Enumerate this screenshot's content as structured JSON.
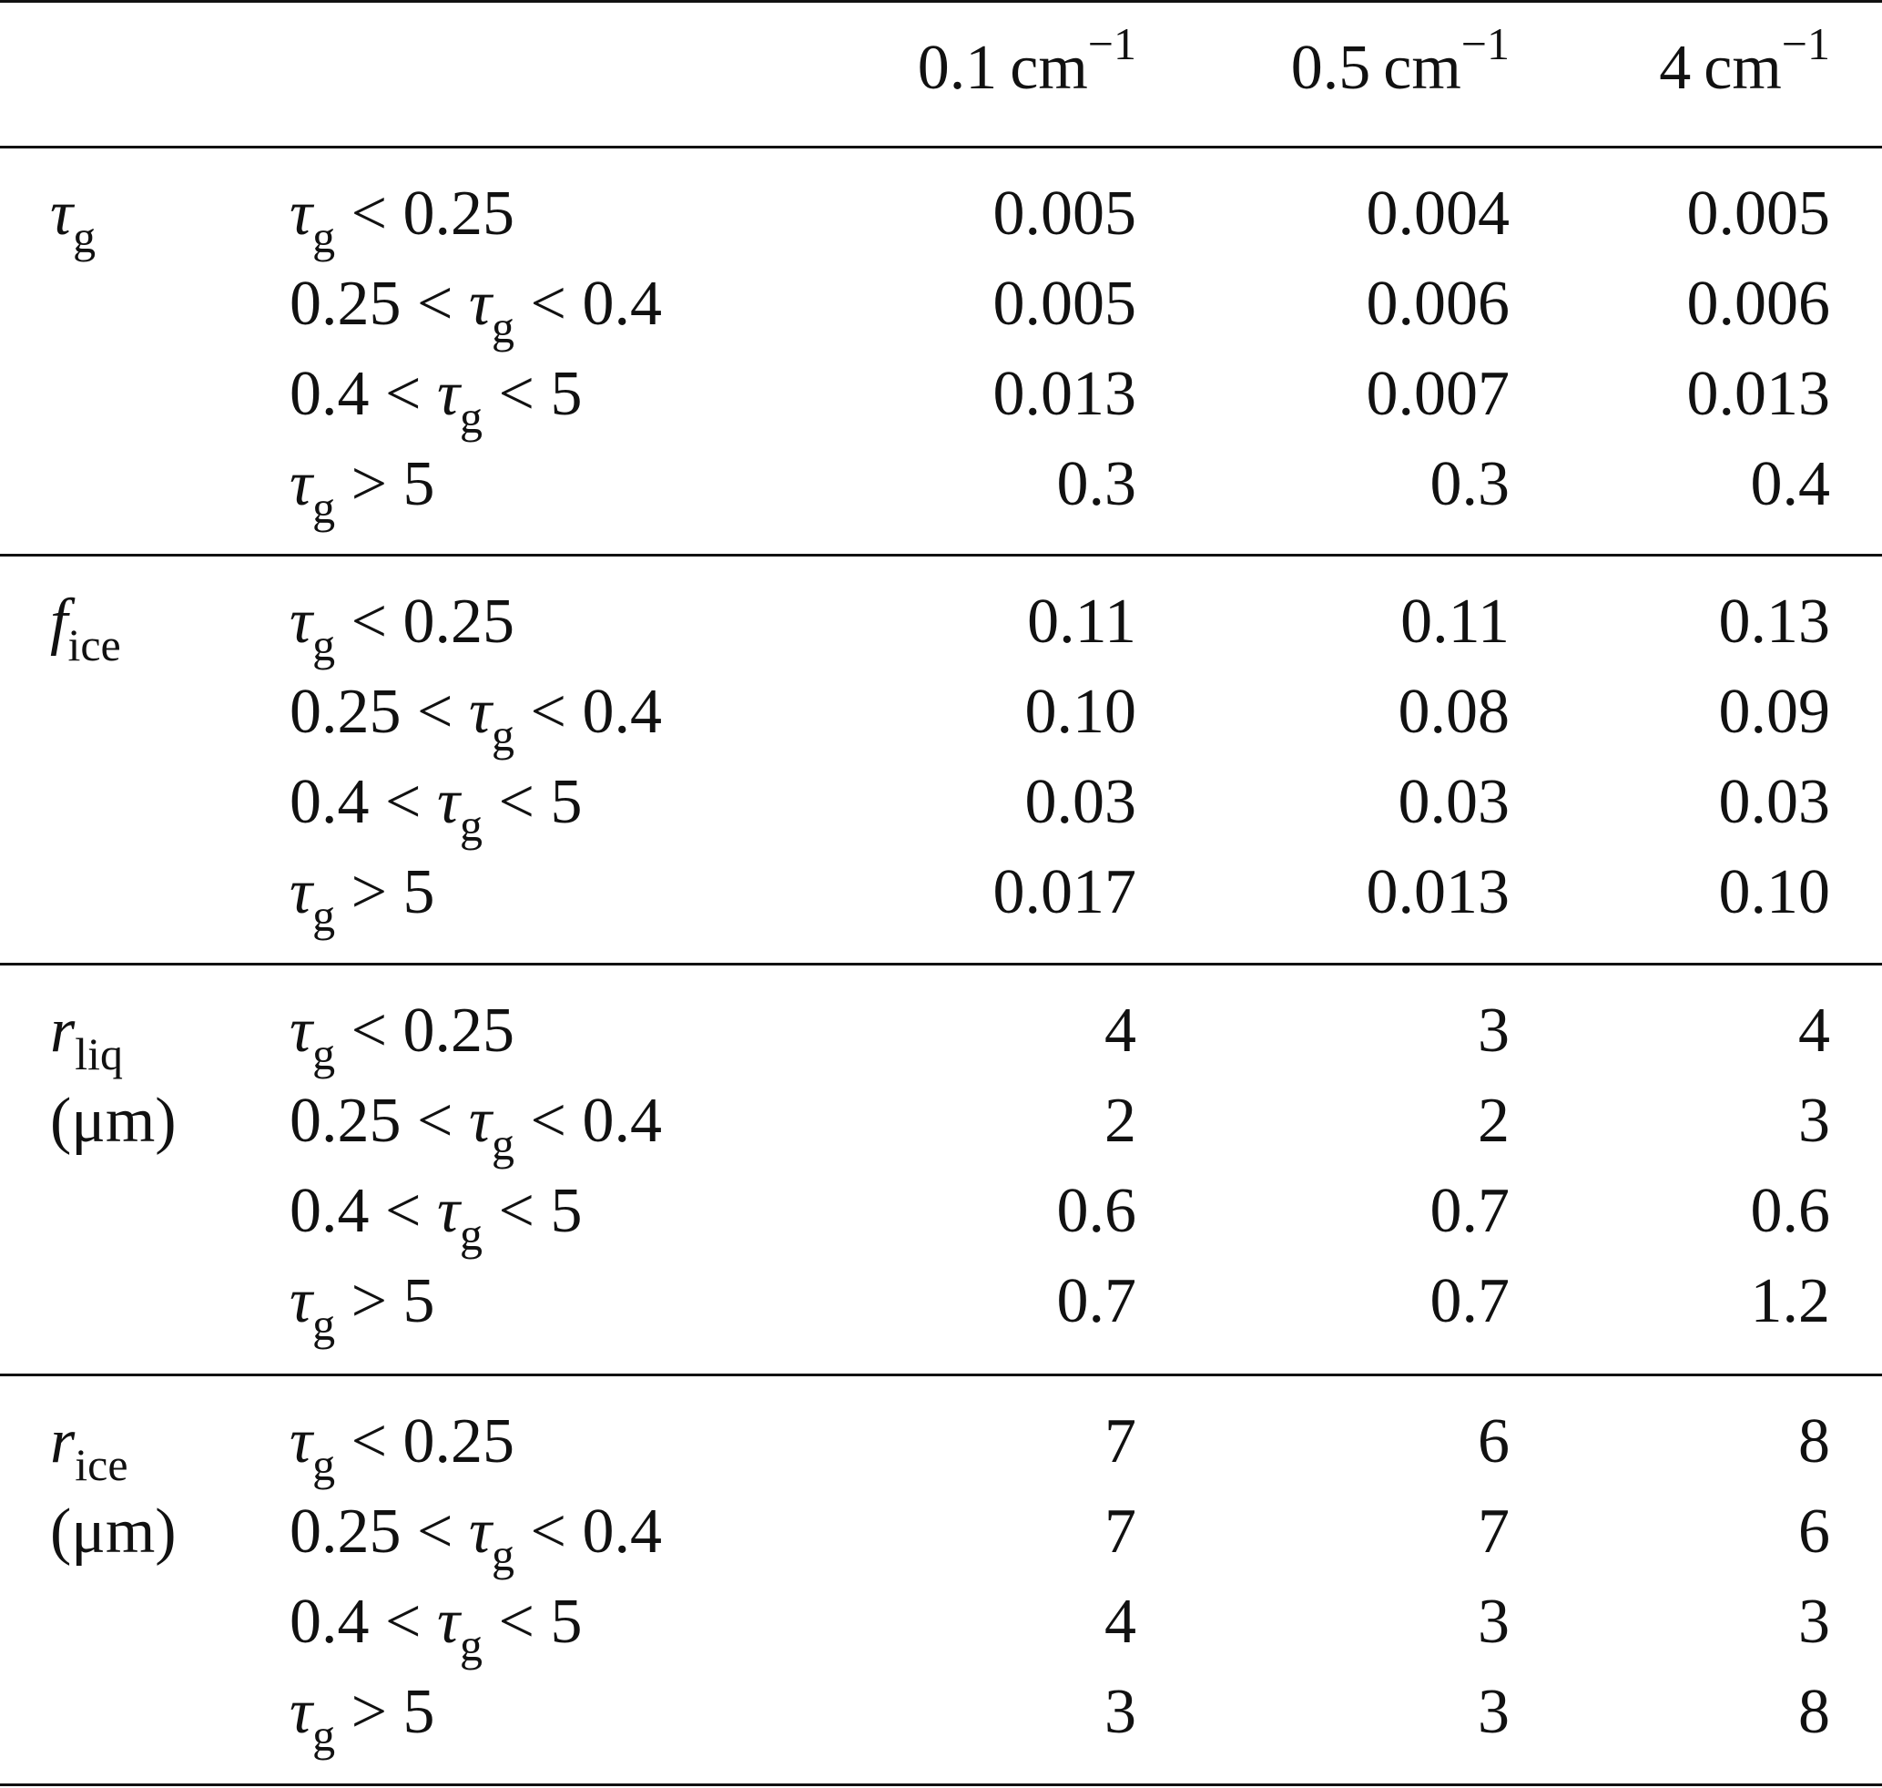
{
  "table": {
    "columns": [
      {
        "num": "0.1",
        "unit": "cm",
        "exp": "−1"
      },
      {
        "num": "0.5",
        "unit": "cm",
        "exp": "−1"
      },
      {
        "num": "4",
        "unit": "cm",
        "exp": "−1"
      }
    ],
    "row_labels": [
      {
        "sym": "",
        "num_a": "",
        "op_a": "",
        "op_b": "",
        "num_b": "τ",
        "sub": "g",
        "cond": " < 0.25"
      },
      {
        "num_a": "0.25 < ",
        "sym": "τ",
        "sub": "g",
        "cond": " < 0.4"
      },
      {
        "num_a": "0.4 < ",
        "sym": "τ",
        "sub": "g",
        "cond": " < 5"
      },
      {
        "num_a": "",
        "sym": "τ",
        "sub": "g",
        "cond": " > 5"
      }
    ],
    "groups": [
      {
        "label": {
          "sym": "τ",
          "sub": "g",
          "unit": ""
        },
        "rows": [
          {
            "pre": "",
            "post": " < 0.25",
            "values": [
              "0.005",
              "0.004",
              "0.005"
            ]
          },
          {
            "pre": "0.25 < ",
            "post": " < 0.4",
            "values": [
              "0.005",
              "0.006",
              "0.006"
            ]
          },
          {
            "pre": "0.4 < ",
            "post": " < 5",
            "values": [
              "0.013",
              "0.007",
              "0.013"
            ]
          },
          {
            "pre": "",
            "post": " > 5",
            "values": [
              "0.3",
              "0.3",
              "0.4"
            ]
          }
        ]
      },
      {
        "label": {
          "sym": "f",
          "sub": "ice",
          "unit": ""
        },
        "rows": [
          {
            "pre": "",
            "post": " < 0.25",
            "values": [
              "0.11",
              "0.11",
              "0.13"
            ]
          },
          {
            "pre": "0.25 < ",
            "post": " < 0.4",
            "values": [
              "0.10",
              "0.08",
              "0.09"
            ]
          },
          {
            "pre": "0.4 < ",
            "post": " < 5",
            "values": [
              "0.03",
              "0.03",
              "0.03"
            ]
          },
          {
            "pre": "",
            "post": " > 5",
            "values": [
              "0.017",
              "0.013",
              "0.10"
            ]
          }
        ]
      },
      {
        "label": {
          "sym": "r",
          "sub": "liq",
          "unit": "(μm)"
        },
        "rows": [
          {
            "pre": "",
            "post": " < 0.25",
            "values": [
              "4",
              "3",
              "4"
            ]
          },
          {
            "pre": "0.25 < ",
            "post": " < 0.4",
            "values": [
              "2",
              "2",
              "3"
            ]
          },
          {
            "pre": "0.4 < ",
            "post": " < 5",
            "values": [
              "0.6",
              "0.7",
              "0.6"
            ]
          },
          {
            "pre": "",
            "post": " > 5",
            "values": [
              "0.7",
              "0.7",
              "1.2"
            ]
          }
        ]
      },
      {
        "label": {
          "sym": "r",
          "sub": "ice",
          "unit": "(μm)"
        },
        "rows": [
          {
            "pre": "",
            "post": " < 0.25",
            "values": [
              "7",
              "6",
              "8"
            ]
          },
          {
            "pre": "0.25 < ",
            "post": " < 0.4",
            "values": [
              "7",
              "7",
              "6"
            ]
          },
          {
            "pre": "0.4 < ",
            "post": " < 5",
            "values": [
              "4",
              "3",
              "3"
            ]
          },
          {
            "pre": "",
            "post": " > 5",
            "values": [
              "3",
              "3",
              "8"
            ]
          }
        ]
      }
    ],
    "cond_symbol": "τ",
    "cond_sub": "g"
  }
}
